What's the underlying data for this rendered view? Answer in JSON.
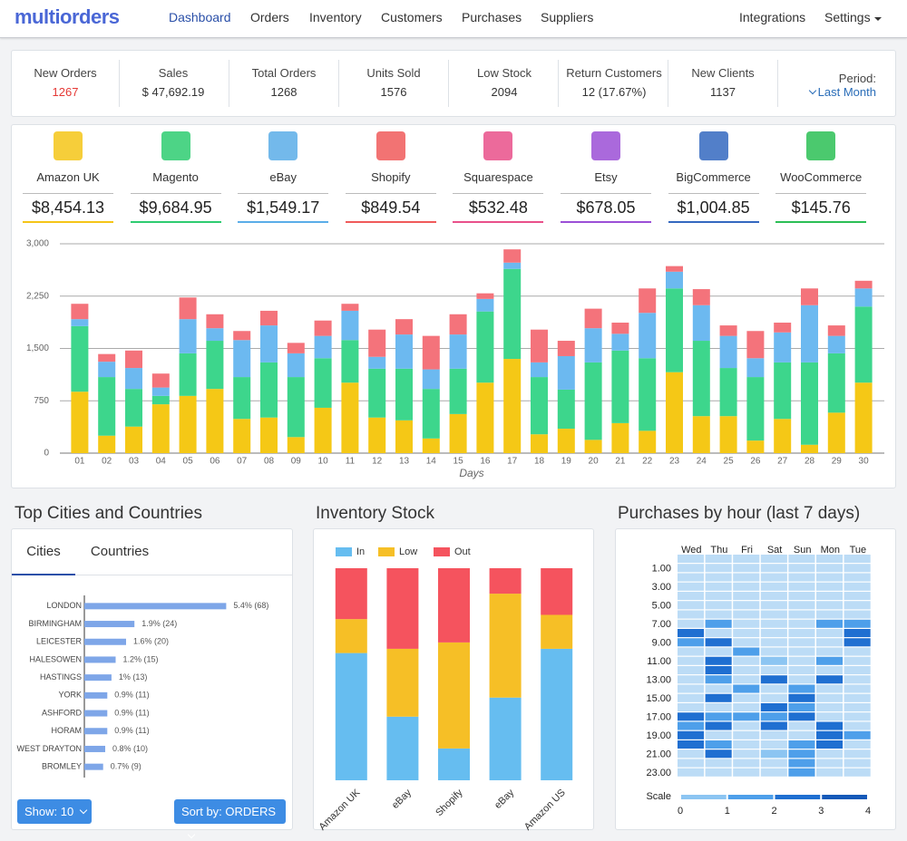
{
  "nav": {
    "brand": "multiorders",
    "links": [
      "Dashboard",
      "Orders",
      "Inventory",
      "Customers",
      "Purchases",
      "Suppliers"
    ],
    "right": [
      "Integrations",
      "Settings"
    ]
  },
  "stats": {
    "items": [
      {
        "label": "New Orders",
        "value": "1267"
      },
      {
        "label": "Sales",
        "value": "$ 47,692.19"
      },
      {
        "label": "Total Orders",
        "value": "1268"
      },
      {
        "label": "Units Sold",
        "value": "1576"
      },
      {
        "label": "Low Stock",
        "value": "2094"
      },
      {
        "label": "Return Customers",
        "value": "12 (17.67%)"
      },
      {
        "label": "New Clients",
        "value": "1137"
      }
    ],
    "period_label": "Period:",
    "period": "Last Month"
  },
  "channels": [
    {
      "name": "Amazon UK",
      "amount": "$8,454.13",
      "color": "#f5c518"
    },
    {
      "name": "Magento",
      "amount": "$9,684.95",
      "color": "#2ecc71"
    },
    {
      "name": "eBay",
      "amount": "$1,549.17",
      "color": "#5aade8"
    },
    {
      "name": "Shopify",
      "amount": "$849.54",
      "color": "#f05a5a"
    },
    {
      "name": "Squarespace",
      "amount": "$532.48",
      "color": "#e9508a"
    },
    {
      "name": "Etsy",
      "amount": "$678.05",
      "color": "#9b4fd6"
    },
    {
      "name": "BigCommerce",
      "amount": "$1,004.85",
      "color": "#3468c0"
    },
    {
      "name": "WooCommerce",
      "amount": "$145.76",
      "color": "#2bbf55"
    }
  ],
  "chart_data": [
    {
      "type": "bar",
      "stacked": true,
      "categories": [
        "01",
        "02",
        "03",
        "04",
        "05",
        "06",
        "07",
        "08",
        "09",
        "10",
        "11",
        "12",
        "13",
        "14",
        "15",
        "16",
        "17",
        "18",
        "19",
        "20",
        "21",
        "22",
        "23",
        "24",
        "25",
        "26",
        "27",
        "28",
        "29",
        "30"
      ],
      "series": [
        {
          "color": "#f5c816",
          "values": [
            880,
            250,
            380,
            700,
            820,
            920,
            490,
            510,
            230,
            650,
            1010,
            510,
            470,
            210,
            560,
            1010,
            1350,
            270,
            350,
            190,
            430,
            320,
            1160,
            530,
            530,
            180,
            490,
            120,
            580,
            1010
          ]
        },
        {
          "color": "#3dd68c",
          "values": [
            940,
            840,
            540,
            120,
            610,
            690,
            600,
            790,
            860,
            710,
            610,
            700,
            740,
            710,
            650,
            1020,
            1290,
            820,
            560,
            1110,
            1040,
            1040,
            1200,
            1080,
            690,
            910,
            810,
            1180,
            850,
            1090
          ]
        },
        {
          "color": "#6cb9f0",
          "values": [
            100,
            220,
            300,
            120,
            490,
            180,
            530,
            530,
            340,
            320,
            420,
            170,
            490,
            280,
            490,
            180,
            90,
            210,
            480,
            490,
            240,
            650,
            240,
            510,
            460,
            270,
            430,
            820,
            250,
            260
          ]
        },
        {
          "color": "#f4737b",
          "values": [
            220,
            110,
            250,
            200,
            310,
            200,
            130,
            210,
            150,
            220,
            100,
            390,
            220,
            480,
            290,
            80,
            190,
            470,
            220,
            280,
            160,
            350,
            80,
            230,
            150,
            390,
            140,
            240,
            150,
            110
          ]
        }
      ],
      "xlabel": "Days",
      "ylim": [
        0,
        3000
      ],
      "yticks": [
        0,
        750,
        {
          "value": 1500,
          "label": "1,500"
        },
        {
          "value": 2250,
          "label": "2,250"
        },
        {
          "value": 3000,
          "label": "3,000"
        }
      ],
      "grid": true
    },
    {
      "type": "bar",
      "orientation": "horizontal",
      "title": "Top Cities and Countries",
      "tabs": [
        "Cities",
        "Countries"
      ],
      "categories": [
        "LONDON",
        "BIRMINGHAM",
        "LEICESTER",
        "HALESOWEN",
        "HASTINGS",
        "YORK",
        "ASHFORD",
        "HORAM",
        "WEST DRAYTON",
        "BROMLEY"
      ],
      "values": [
        68,
        24,
        20,
        15,
        13,
        11,
        11,
        11,
        10,
        9
      ],
      "value_labels": [
        "5.4% (68)",
        "1.9% (24)",
        "1.6% (20)",
        "1.2% (15)",
        "1% (13)",
        "0.9% (11)",
        "0.9% (11)",
        "0.9% (11)",
        "0.8% (10)",
        "0.7% (9)"
      ],
      "color": "#7ea6e8",
      "xlim": [
        0,
        70
      ],
      "controls": [
        "Show: 10",
        "Sort by: ORDERS"
      ]
    },
    {
      "type": "bar",
      "stacked": true,
      "title": "Inventory Stock",
      "categories": [
        "Amazon UK",
        "eBay",
        "Shopify",
        "eBay",
        "Amazon US"
      ],
      "series": [
        {
          "name": "In",
          "color": "#66bdf0",
          "values": [
            60,
            30,
            15,
            39,
            62
          ]
        },
        {
          "name": "Low",
          "color": "#f6bf26",
          "values": [
            16,
            32,
            50,
            49,
            16
          ]
        },
        {
          "name": "Out",
          "color": "#f5535e",
          "values": [
            24,
            38,
            35,
            12,
            22
          ]
        }
      ],
      "ylim": [
        0,
        100
      ]
    },
    {
      "type": "heatmap",
      "title": "Purchases by hour (last 7 days)",
      "x": [
        "Wed",
        "Thu",
        "Fri",
        "Sat",
        "Sun",
        "Mon",
        "Tue"
      ],
      "y": [
        null,
        "1.00",
        null,
        "3.00",
        null,
        "5.00",
        null,
        "7.00",
        null,
        "9.00",
        null,
        "11.00",
        null,
        "13.00",
        null,
        "15.00",
        null,
        "17.00",
        null,
        "19.00",
        null,
        "21.00",
        null,
        "23.00"
      ],
      "values": [
        [
          0,
          0,
          0,
          0,
          0,
          0,
          0
        ],
        [
          0,
          0,
          0,
          0,
          0,
          0,
          0
        ],
        [
          0,
          0,
          0,
          0,
          0,
          0,
          0
        ],
        [
          0,
          0,
          0,
          0,
          0,
          0,
          0
        ],
        [
          0,
          0,
          0,
          0,
          0,
          0,
          0
        ],
        [
          0,
          0,
          0,
          0,
          0,
          0,
          0
        ],
        [
          0,
          0,
          0,
          0,
          0,
          0,
          0
        ],
        [
          0,
          2,
          0,
          0,
          0,
          2,
          2
        ],
        [
          3,
          0,
          0,
          0,
          0,
          0,
          3
        ],
        [
          2,
          3,
          0,
          0,
          0,
          0,
          3
        ],
        [
          0,
          0,
          2,
          0,
          0,
          0,
          0
        ],
        [
          0,
          3,
          0,
          1,
          0,
          2,
          0
        ],
        [
          0,
          3,
          0,
          0,
          0,
          0,
          0
        ],
        [
          0,
          2,
          0,
          3,
          0,
          3,
          0
        ],
        [
          0,
          0,
          2,
          0,
          2,
          0,
          0
        ],
        [
          0,
          3,
          0,
          0,
          3,
          0,
          0
        ],
        [
          0,
          0,
          0,
          3,
          2,
          0,
          0
        ],
        [
          3,
          2,
          2,
          2,
          3,
          0,
          0
        ],
        [
          2,
          3,
          0,
          3,
          0,
          3,
          0
        ],
        [
          3,
          0,
          0,
          0,
          0,
          3,
          2
        ],
        [
          3,
          2,
          0,
          0,
          2,
          3,
          0
        ],
        [
          0,
          3,
          0,
          1,
          2,
          0,
          0
        ],
        [
          0,
          0,
          0,
          0,
          2,
          0,
          0
        ],
        [
          0,
          0,
          0,
          0,
          2,
          0,
          0
        ]
      ],
      "scale_label": "Scale",
      "zlim": [
        0,
        4
      ],
      "zticks": [
        0,
        1,
        2,
        3,
        4
      ],
      "colors": [
        "#bcdcf6",
        "#8cc5f2",
        "#4e9fea",
        "#1f6fd1",
        "#1559b8"
      ]
    }
  ]
}
